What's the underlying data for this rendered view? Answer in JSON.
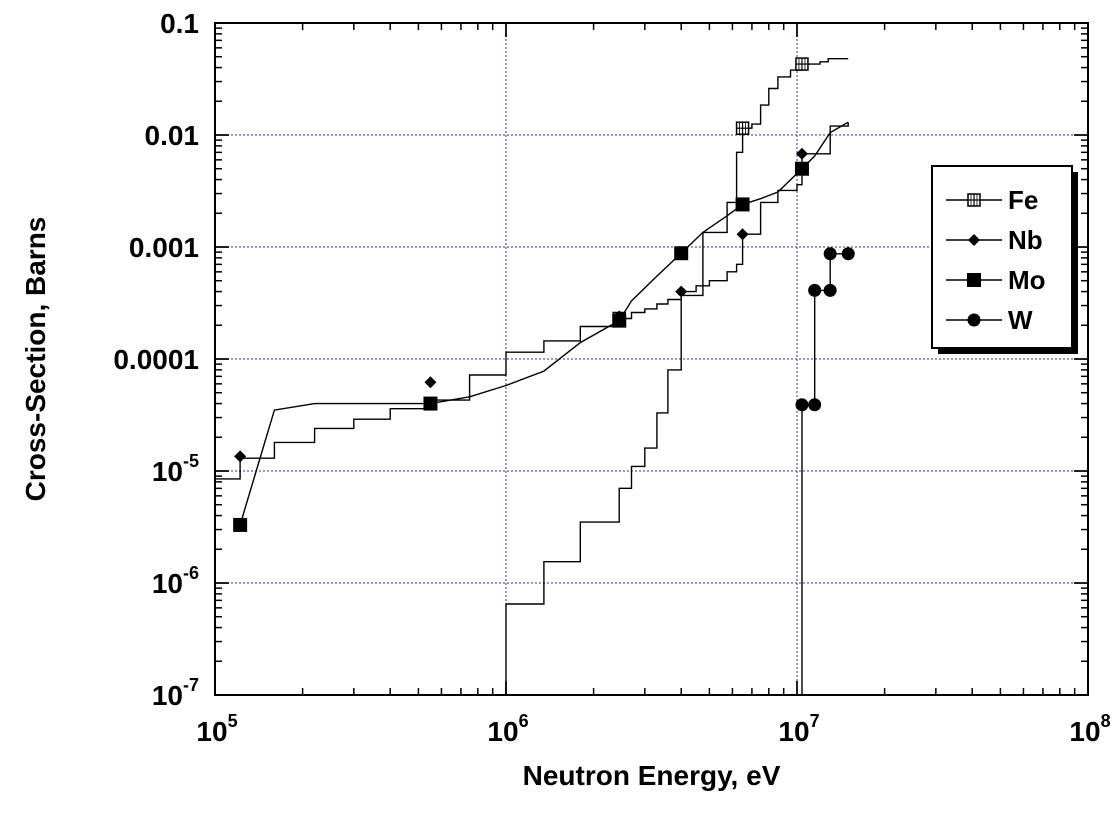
{
  "chart_data": {
    "type": "line",
    "xlabel": "Neutron Energy, eV",
    "ylabel": "Cross-Section, Barns",
    "x_scale": "log",
    "y_scale": "log",
    "xlim": [
      100000,
      100000000
    ],
    "ylim": [
      1e-07,
      0.1
    ],
    "grid": true,
    "legend_position": "right",
    "x_ticks": [
      {
        "value": 100000,
        "base": "10",
        "exp": "5"
      },
      {
        "value": 1000000,
        "base": "10",
        "exp": "6"
      },
      {
        "value": 10000000,
        "base": "10",
        "exp": "7"
      },
      {
        "value": 100000000,
        "base": "10",
        "exp": "8"
      }
    ],
    "y_ticks": [
      {
        "value": 1e-07,
        "base": "10",
        "exp": "-7"
      },
      {
        "value": 1e-06,
        "base": "10",
        "exp": "-6"
      },
      {
        "value": 1e-05,
        "base": "10",
        "exp": "-5"
      },
      {
        "value": 0.0001,
        "text": "0.0001"
      },
      {
        "value": 0.001,
        "text": "0.001"
      },
      {
        "value": 0.01,
        "text": "0.01"
      },
      {
        "value": 0.1,
        "text": "0.1"
      }
    ],
    "series": [
      {
        "name": "Fe",
        "marker": "square-grid",
        "step": true,
        "points": [
          [
            100000,
            8.5e-06
          ],
          [
            122000,
            1.3e-05
          ],
          [
            160000,
            1.8e-05
          ],
          [
            220000,
            2.4e-05
          ],
          [
            300000,
            2.9e-05
          ],
          [
            400000,
            3.6e-05
          ],
          [
            550000,
            4.3e-05
          ],
          [
            750000,
            7.2e-05
          ],
          [
            1000000,
            0.000115
          ],
          [
            1350000,
            0.000145
          ],
          [
            1800000,
            0.000195
          ],
          [
            2450000,
            0.00023
          ],
          [
            2700000,
            0.00026
          ],
          [
            3000000,
            0.00028
          ],
          [
            3300000,
            0.00031
          ],
          [
            3600000,
            0.00034
          ],
          [
            4000000,
            0.00037
          ],
          [
            4750000,
            0.00135
          ],
          [
            5750000,
            0.0025
          ],
          [
            6200000,
            0.007
          ],
          [
            6500000,
            0.0115
          ],
          [
            7000000,
            0.0125
          ],
          [
            7500000,
            0.0185
          ],
          [
            8000000,
            0.026
          ],
          [
            8600000,
            0.033
          ],
          [
            9500000,
            0.038
          ],
          [
            10400000,
            0.043
          ],
          [
            11200000,
            0.043
          ],
          [
            12000000,
            0.045
          ],
          [
            12800000,
            0.048
          ],
          [
            15000000,
            0.048
          ]
        ],
        "markers": [
          [
            2450000,
            0.00023
          ],
          [
            6500000,
            0.0115
          ],
          [
            10400000,
            0.043
          ]
        ]
      },
      {
        "name": "Nb",
        "marker": "diamond",
        "step": true,
        "points": [
          [
            1000000,
            1e-07
          ],
          [
            1000000,
            6.5e-07
          ],
          [
            1350000,
            1.55e-06
          ],
          [
            1800000,
            3.5e-06
          ],
          [
            2450000,
            7e-06
          ],
          [
            2700000,
            1.1e-05
          ],
          [
            3000000,
            1.6e-05
          ],
          [
            3300000,
            3.3e-05
          ],
          [
            3600000,
            8e-05
          ],
          [
            4000000,
            0.0004
          ],
          [
            4500000,
            0.00045
          ],
          [
            5000000,
            0.0005
          ],
          [
            5750000,
            0.0006
          ],
          [
            6200000,
            0.0007
          ],
          [
            6500000,
            0.0013
          ],
          [
            7500000,
            0.0025
          ],
          [
            8600000,
            0.0032
          ],
          [
            10000000,
            0.0036
          ],
          [
            10400000,
            0.0068
          ],
          [
            11200000,
            0.0068
          ],
          [
            12000000,
            0.0068
          ],
          [
            13000000,
            0.012
          ],
          [
            15000000,
            0.013
          ]
        ],
        "markers": [
          [
            122000,
            1.35e-05
          ],
          [
            550000,
            6.2e-05
          ],
          [
            2450000,
            0.00024
          ],
          [
            4000000,
            0.0004
          ],
          [
            6500000,
            0.0013
          ],
          [
            10400000,
            0.0068
          ]
        ]
      },
      {
        "name": "Mo",
        "marker": "square",
        "step": false,
        "points": [
          [
            122000,
            3.3e-06
          ],
          [
            160000,
            3.5e-05
          ],
          [
            220000,
            4e-05
          ],
          [
            300000,
            4e-05
          ],
          [
            400000,
            4e-05
          ],
          [
            550000,
            4e-05
          ],
          [
            750000,
            4.6e-05
          ],
          [
            1000000,
            5.8e-05
          ],
          [
            1350000,
            7.8e-05
          ],
          [
            1800000,
            0.00014
          ],
          [
            2450000,
            0.00022
          ],
          [
            2700000,
            0.00033
          ],
          [
            3300000,
            0.00055
          ],
          [
            4000000,
            0.00088
          ],
          [
            4750000,
            0.00135
          ],
          [
            5750000,
            0.0019
          ],
          [
            6500000,
            0.0024
          ],
          [
            7500000,
            0.0027
          ],
          [
            8600000,
            0.0031
          ],
          [
            10400000,
            0.005
          ],
          [
            11500000,
            0.0065
          ],
          [
            13000000,
            0.0105
          ],
          [
            15000000,
            0.013
          ]
        ],
        "markers": [
          [
            122000,
            3.3e-06
          ],
          [
            550000,
            4e-05
          ],
          [
            2450000,
            0.00022
          ],
          [
            4000000,
            0.00088
          ],
          [
            6500000,
            0.0024
          ],
          [
            10400000,
            0.005
          ]
        ]
      },
      {
        "name": "W",
        "marker": "circle",
        "step": false,
        "points": [
          [
            10400000,
            1e-07
          ],
          [
            10400000,
            3.9e-05
          ],
          [
            11500000,
            3.9e-05
          ],
          [
            11500000,
            0.00041
          ],
          [
            13000000,
            0.00041
          ],
          [
            13000000,
            0.00087
          ],
          [
            15000000,
            0.00087
          ]
        ],
        "markers": [
          [
            10400000,
            3.9e-05
          ],
          [
            11500000,
            3.9e-05
          ],
          [
            11500000,
            0.00041
          ],
          [
            13000000,
            0.00041
          ],
          [
            13000000,
            0.00087
          ],
          [
            15000000,
            0.00087
          ]
        ]
      }
    ]
  }
}
